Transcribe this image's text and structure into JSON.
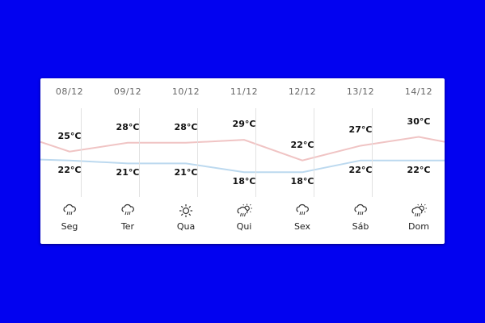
{
  "colors": {
    "background": "#0202f0",
    "high_line": "#f0c4c4",
    "low_line": "#bcd9ef"
  },
  "days": [
    {
      "date": "08/12",
      "high": "25°C",
      "low": "22°C",
      "high_value": 25,
      "low_value": 22,
      "icon": "rain-cloud-icon",
      "label": "Seg"
    },
    {
      "date": "09/12",
      "high": "28°C",
      "low": "21°C",
      "high_value": 28,
      "low_value": 21,
      "icon": "rain-cloud-icon",
      "label": "Ter"
    },
    {
      "date": "10/12",
      "high": "28°C",
      "low": "21°C",
      "high_value": 28,
      "low_value": 21,
      "icon": "sun-icon",
      "label": "Qua"
    },
    {
      "date": "11/12",
      "high": "29°C",
      "low": "18°C",
      "high_value": 29,
      "low_value": 18,
      "icon": "sun-rain-cloud-icon",
      "label": "Qui"
    },
    {
      "date": "12/12",
      "high": "22°C",
      "low": "18°C",
      "high_value": 22,
      "low_value": 18,
      "icon": "rain-cloud-icon",
      "label": "Sex"
    },
    {
      "date": "13/12",
      "high": "27°C",
      "low": "22°C",
      "high_value": 27,
      "low_value": 22,
      "icon": "rain-cloud-icon",
      "label": "Sáb"
    },
    {
      "date": "14/12",
      "high": "30°C",
      "low": "22°C",
      "high_value": 30,
      "low_value": 22,
      "icon": "sun-rain-cloud-icon",
      "label": "Dom"
    }
  ]
}
